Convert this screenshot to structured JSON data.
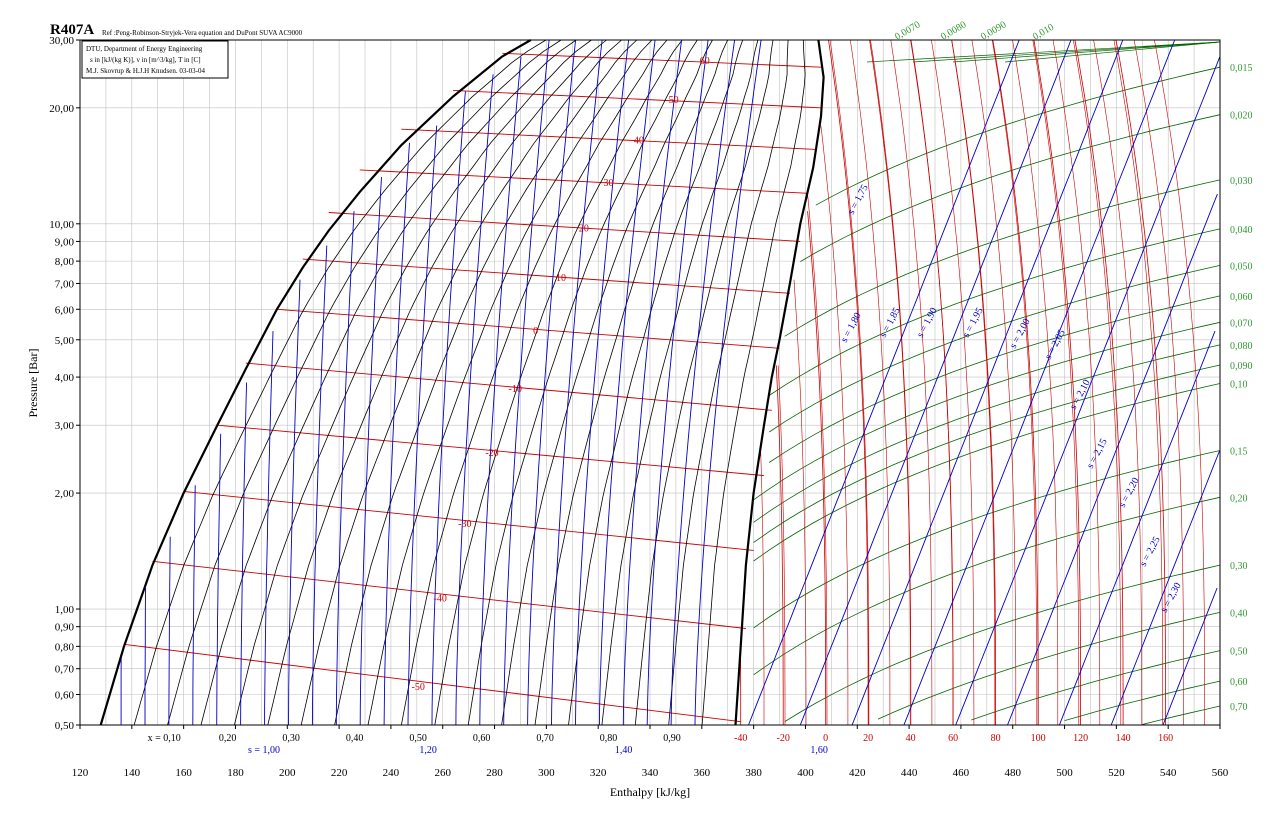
{
  "chart_data": {
    "type": "line",
    "title": "R407A",
    "subtitle": "Ref :Peng-Robinson-Stryjek-Vera equation and DuPont SUVA AC9000",
    "info_box": [
      "DTU, Department of Energy Engineering",
      "s in [kJ/(kg K)], v in [m^3/kg], T in [C]",
      "M.J. Skovrup & H.J.H Knudsen. 03-03-04"
    ],
    "xlabel": "Enthalpy [kJ/kg]",
    "ylabel": "Pressure [Bar]",
    "xlim": [
      120,
      560
    ],
    "ylim": [
      0.5,
      30
    ],
    "y_scale": "log",
    "grid": true,
    "x_ticks": [
      "120",
      "140",
      "160",
      "180",
      "200",
      "220",
      "240",
      "260",
      "280",
      "300",
      "320",
      "340",
      "360",
      "380",
      "400",
      "420",
      "440",
      "460",
      "480",
      "500",
      "520",
      "540",
      "560"
    ],
    "y_ticks": [
      {
        "value": 0.5,
        "label": "0,50"
      },
      {
        "value": 0.6,
        "label": "0,60"
      },
      {
        "value": 0.7,
        "label": "0,70"
      },
      {
        "value": 0.8,
        "label": "0,80"
      },
      {
        "value": 0.9,
        "label": "0,90"
      },
      {
        "value": 1.0,
        "label": "1,00"
      },
      {
        "value": 2.0,
        "label": "2,00"
      },
      {
        "value": 3.0,
        "label": "3,00"
      },
      {
        "value": 4.0,
        "label": "4,00"
      },
      {
        "value": 5.0,
        "label": "5,00"
      },
      {
        "value": 6.0,
        "label": "6,00"
      },
      {
        "value": 7.0,
        "label": "7,00"
      },
      {
        "value": 8.0,
        "label": "8,00"
      },
      {
        "value": 9.0,
        "label": "9,00"
      },
      {
        "value": 10.0,
        "label": "10,00"
      },
      {
        "value": 20.0,
        "label": "20,00"
      },
      {
        "value": 30.0,
        "label": "30,00"
      }
    ],
    "saturated_liquid": [
      [
        128,
        0.5
      ],
      [
        137,
        0.8
      ],
      [
        148,
        1.3
      ],
      [
        160,
        2.0
      ],
      [
        173,
        3.0
      ],
      [
        184,
        4.2
      ],
      [
        196,
        6.0
      ],
      [
        206,
        7.7
      ],
      [
        216,
        9.6
      ],
      [
        228,
        12.1
      ],
      [
        244,
        16.0
      ],
      [
        264,
        21.4
      ],
      [
        283,
        27.2
      ],
      [
        294,
        30.0
      ]
    ],
    "saturated_vapor": [
      [
        373,
        0.5
      ],
      [
        375,
        0.8
      ],
      [
        377,
        1.3
      ],
      [
        380,
        2.0
      ],
      [
        384,
        3.0
      ],
      [
        387,
        4.0
      ],
      [
        390,
        5.0
      ],
      [
        394,
        7.0
      ],
      [
        398,
        10.0
      ],
      [
        403,
        14.0
      ],
      [
        406,
        19.0
      ],
      [
        407,
        24.0
      ],
      [
        405,
        30.0
      ]
    ],
    "isotherms_2phase": [
      {
        "label": "-50",
        "bubble": [
          137,
          0.81
        ],
        "dew": [
          375,
          0.51
        ]
      },
      {
        "label": "-40",
        "bubble": [
          148,
          1.33
        ],
        "dew": [
          377,
          0.89
        ]
      },
      {
        "label": "-30",
        "bubble": [
          160,
          2.02
        ],
        "dew": [
          380,
          1.42
        ]
      },
      {
        "label": "-20",
        "bubble": [
          173,
          3.0
        ],
        "dew": [
          384,
          2.22
        ]
      },
      {
        "label": "-10",
        "bubble": [
          184,
          4.35
        ],
        "dew": [
          387,
          3.28
        ]
      },
      {
        "label": "0",
        "bubble": [
          196,
          6.0
        ],
        "dew": [
          390,
          4.75
        ]
      },
      {
        "label": "10",
        "bubble": [
          206,
          8.1
        ],
        "dew": [
          394,
          6.6
        ]
      },
      {
        "label": "20",
        "bubble": [
          216,
          10.7
        ],
        "dew": [
          398,
          9.0
        ]
      },
      {
        "label": "30",
        "bubble": [
          228,
          13.8
        ],
        "dew": [
          401,
          12.0
        ]
      },
      {
        "label": "40",
        "bubble": [
          244,
          17.6
        ],
        "dew": [
          404,
          15.6
        ]
      },
      {
        "label": "50",
        "bubble": [
          264,
          22.2
        ],
        "dew": [
          406,
          20.0
        ]
      },
      {
        "label": "60",
        "bubble": [
          283,
          27.7
        ],
        "dew": [
          406,
          25.5
        ]
      }
    ],
    "quality_labels": [
      "x = 0,10",
      "0,20",
      "0,30",
      "0,40",
      "0,50",
      "0,60",
      "0,70",
      "0,80",
      "0,90"
    ],
    "quality_values": [
      0.1,
      0.2,
      0.3,
      0.4,
      0.5,
      0.6,
      0.7,
      0.8,
      0.9
    ],
    "entropy_labels_2phase": [
      "s = 1,00",
      "1,20",
      "1,40",
      "1,60"
    ],
    "entropy_vapor_labels": [
      "1,75",
      "1,80",
      "1,85",
      "1,90",
      "1,95",
      "2,00",
      "2,05",
      "2,10",
      "2,15",
      "2,20",
      "2,25",
      "2,30"
    ],
    "temperature_bottom_labels": [
      "-40",
      "-20",
      "0",
      "20",
      "40",
      "60",
      "80",
      "100",
      "120",
      "140",
      "160"
    ],
    "temperature_bottom_values": [
      -40,
      -20,
      0,
      20,
      40,
      60,
      80,
      100,
      120,
      140,
      160
    ],
    "volume_labels": [
      {
        "label": "0,0070",
        "p": 30.0,
        "side": "top"
      },
      {
        "label": "0,0080",
        "p": 30.0,
        "side": "top"
      },
      {
        "label": "0,0090",
        "p": 30.0,
        "side": "top"
      },
      {
        "label": "0,010",
        "p": 30.0,
        "side": "top"
      },
      {
        "label": "0,015",
        "p": 25.5
      },
      {
        "label": "0,020",
        "p": 19.2
      },
      {
        "label": "0,030",
        "p": 13.0
      },
      {
        "label": "0,040",
        "p": 9.7
      },
      {
        "label": "0,050",
        "p": 7.8
      },
      {
        "label": "0,060",
        "p": 6.5
      },
      {
        "label": "0,070",
        "p": 5.55
      },
      {
        "label": "0,080",
        "p": 4.85
      },
      {
        "label": "0,090",
        "p": 4.3
      },
      {
        "label": "0,10",
        "p": 3.85
      },
      {
        "label": "0,15",
        "p": 2.58
      },
      {
        "label": "0,20",
        "p": 1.95
      },
      {
        "label": "0,30",
        "p": 1.3
      },
      {
        "label": "0,40",
        "p": 0.98
      },
      {
        "label": "0,50",
        "p": 0.78
      },
      {
        "label": "0,60",
        "p": 0.65
      },
      {
        "label": "0,70",
        "p": 0.56
      }
    ],
    "colors": {
      "isotherm": "#cc0000",
      "isentrope": "#0000cc",
      "quality": "#000000",
      "isochore": "#006600",
      "grid": "#c0c0c0",
      "saturation": "#000000",
      "volume_label": "#339933"
    }
  }
}
